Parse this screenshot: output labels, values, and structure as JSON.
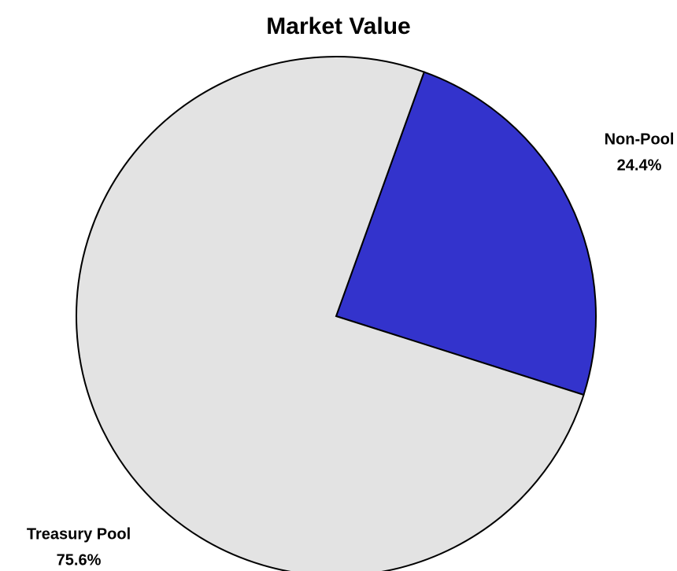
{
  "chart_data": {
    "type": "pie",
    "title": "Market Value",
    "categories": [
      "Non-Pool",
      "Treasury Pool"
    ],
    "values": [
      24.4,
      75.6
    ],
    "value_labels": [
      "24.4%",
      "75.6%"
    ],
    "colors": [
      "#3333cc",
      "#e3e3e3"
    ]
  }
}
